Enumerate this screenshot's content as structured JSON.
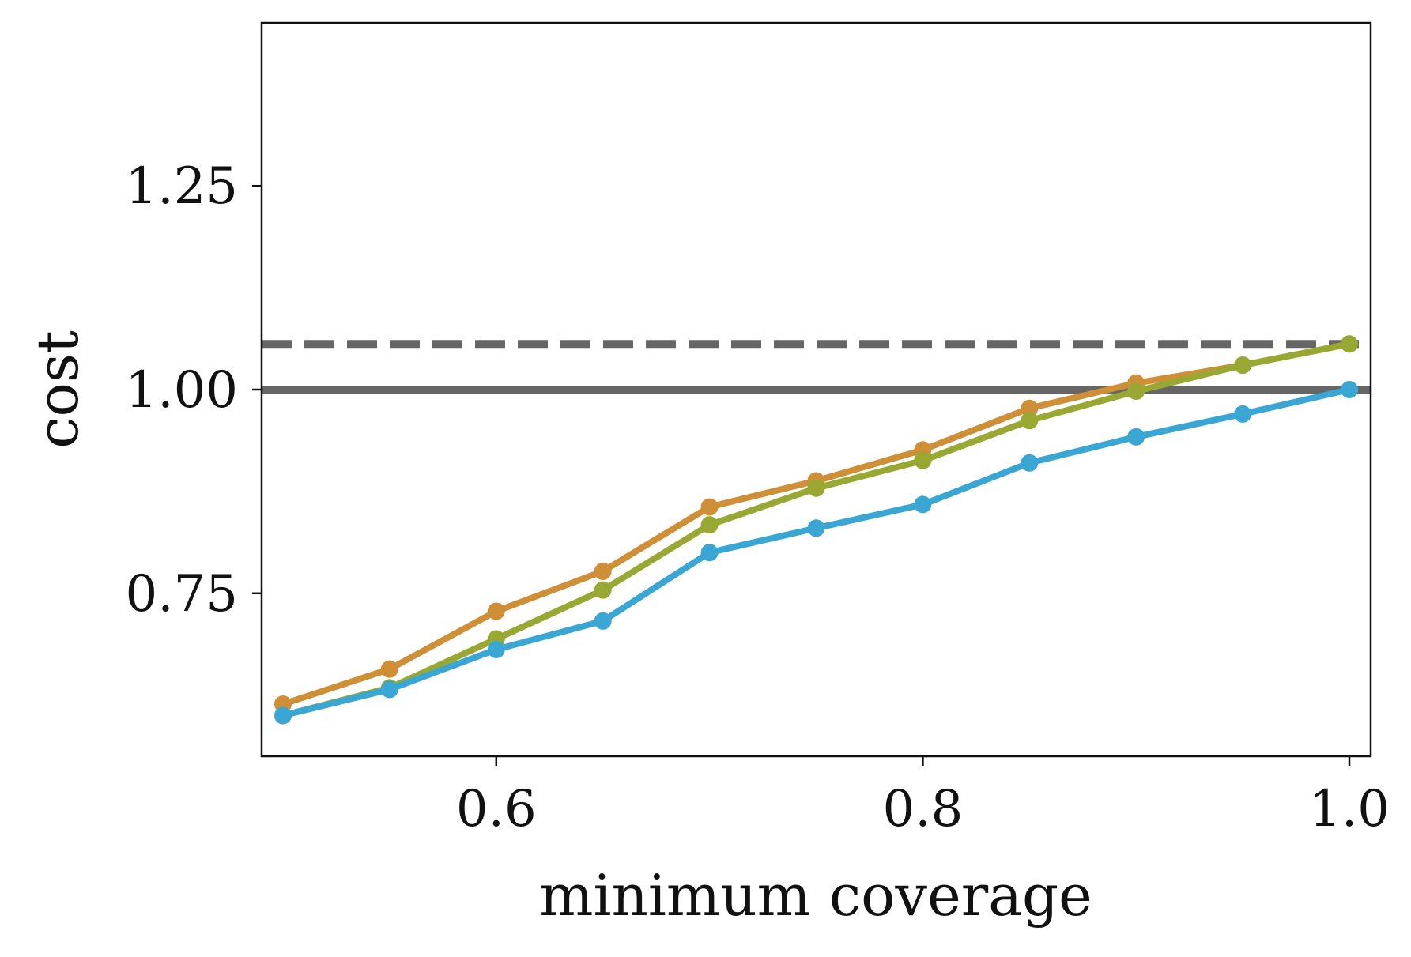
{
  "chart_data": {
    "type": "line",
    "title": "",
    "xlabel": "minimum coverage",
    "ylabel": "cost",
    "xlim": [
      0.49,
      1.01
    ],
    "ylim": [
      0.55,
      1.45
    ],
    "xticks": [
      0.6,
      0.8,
      1.0
    ],
    "xtick_labels": [
      "0.6",
      "0.8",
      "1.0"
    ],
    "yticks": [
      0.75,
      1.0,
      1.25
    ],
    "ytick_labels": [
      "0.75",
      "1.00",
      "1.25"
    ],
    "grid": false,
    "legend": "none",
    "x": [
      0.5,
      0.55,
      0.6,
      0.65,
      0.7,
      0.75,
      0.8,
      0.85,
      0.9,
      0.95,
      1.0
    ],
    "series": [
      {
        "color": "#cf8f36",
        "values": [
          0.614,
          0.657,
          0.728,
          0.777,
          0.856,
          0.888,
          0.926,
          0.977,
          1.008,
          1.03,
          1.056
        ]
      },
      {
        "color": "#98a832",
        "values": [
          0.6,
          0.634,
          0.694,
          0.754,
          0.834,
          0.879,
          0.913,
          0.962,
          0.998,
          1.03,
          1.056
        ]
      },
      {
        "color": "#3aa6d3",
        "values": [
          0.6,
          0.632,
          0.681,
          0.716,
          0.8,
          0.83,
          0.859,
          0.91,
          0.942,
          0.97,
          1.0
        ]
      }
    ],
    "reference_lines": [
      {
        "style": "solid",
        "y": 1.0,
        "color": "#666666"
      },
      {
        "style": "dashed",
        "y": 1.056,
        "color": "#666666"
      }
    ]
  }
}
